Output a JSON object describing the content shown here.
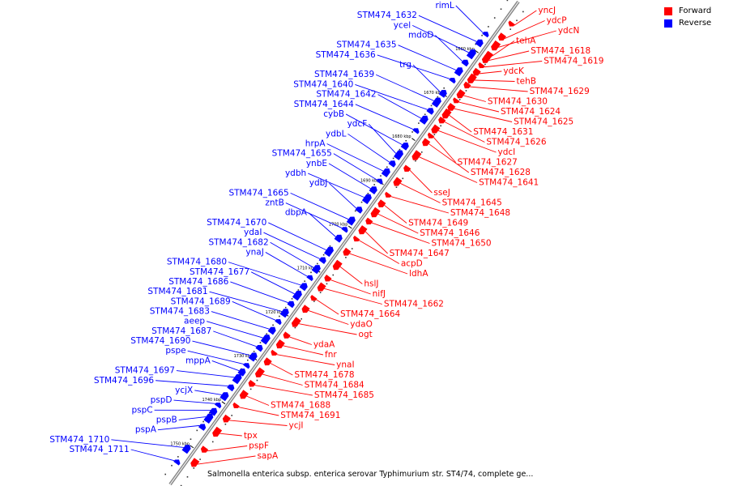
{
  "legend": {
    "forward": {
      "label": "Forward",
      "color": "#ff0000"
    },
    "reverse": {
      "label": "Reverse",
      "color": "#0000ff"
    }
  },
  "caption": "Salmonella enterica subsp. enterica serovar Typhimurium str. ST4/74, complete ge...",
  "ticks": [
    {
      "kbp": 1660,
      "label": "1660 kbp"
    },
    {
      "kbp": 1670,
      "label": "1670 kbp"
    },
    {
      "kbp": 1680,
      "label": "1680 kbp"
    },
    {
      "kbp": 1690,
      "label": "1690 kbp"
    },
    {
      "kbp": 1700,
      "label": "1700 kbp"
    },
    {
      "kbp": 1710,
      "label": "1710 kbp"
    },
    {
      "kbp": 1720,
      "label": "1720 kbp"
    },
    {
      "kbp": 1730,
      "label": "1730 kbp"
    },
    {
      "kbp": 1740,
      "label": "1740 kbp"
    },
    {
      "kbp": 1750,
      "label": "1750 kbp"
    }
  ],
  "reverse_genes": [
    {
      "name": "rimL",
      "kbp": 1656.5
    },
    {
      "name": "STM474_1632",
      "kbp": 1658.5
    },
    {
      "name": "ycel",
      "kbp": 1661
    },
    {
      "name": "mdoD",
      "kbp": 1663
    },
    {
      "name": "STM474_1635",
      "kbp": 1665
    },
    {
      "name": "STM474_1636",
      "kbp": 1667
    },
    {
      "name": "trg",
      "kbp": 1670
    },
    {
      "name": "STM474_1639",
      "kbp": 1672
    },
    {
      "name": "STM474_1640",
      "kbp": 1674
    },
    {
      "name": "STM474_1642",
      "kbp": 1676
    },
    {
      "name": "STM474_1644",
      "kbp": 1678.5
    },
    {
      "name": "cybB",
      "kbp": 1682
    },
    {
      "name": "ydcF",
      "kbp": 1684
    },
    {
      "name": "ydbL",
      "kbp": 1686
    },
    {
      "name": "hrpA",
      "kbp": 1688
    },
    {
      "name": "STM474_1655",
      "kbp": 1690
    },
    {
      "name": "ynbE",
      "kbp": 1692
    },
    {
      "name": "ydbh",
      "kbp": 1694
    },
    {
      "name": "ydbJ",
      "kbp": 1696.5
    },
    {
      "name": "STM474_1665",
      "kbp": 1699
    },
    {
      "name": "zntB",
      "kbp": 1701
    },
    {
      "name": "dbpA",
      "kbp": 1703
    },
    {
      "name": "STM474_1670",
      "kbp": 1706
    },
    {
      "name": "ydaI",
      "kbp": 1708
    },
    {
      "name": "STM474_1682",
      "kbp": 1710
    },
    {
      "name": "ynaJ",
      "kbp": 1712
    },
    {
      "name": "STM474_1680",
      "kbp": 1714
    },
    {
      "name": "STM474_1677",
      "kbp": 1716
    },
    {
      "name": "STM474_1686",
      "kbp": 1718
    },
    {
      "name": "STM474_1681",
      "kbp": 1720
    },
    {
      "name": "STM474_1689",
      "kbp": 1722
    },
    {
      "name": "STM474_1683",
      "kbp": 1724
    },
    {
      "name": "aeep",
      "kbp": 1726
    },
    {
      "name": "STM474_1687",
      "kbp": 1728
    },
    {
      "name": "STM474_1690",
      "kbp": 1730
    },
    {
      "name": "pspe",
      "kbp": 1732
    },
    {
      "name": "mppA",
      "kbp": 1733.5
    },
    {
      "name": "STM474_1697",
      "kbp": 1735
    },
    {
      "name": "STM474_1696",
      "kbp": 1737
    },
    {
      "name": "ycjX",
      "kbp": 1739
    },
    {
      "name": "pspD",
      "kbp": 1741
    },
    {
      "name": "pspC",
      "kbp": 1742.5
    },
    {
      "name": "pspB",
      "kbp": 1744
    },
    {
      "name": "pspA",
      "kbp": 1746
    },
    {
      "name": "STM474_1710",
      "kbp": 1751
    },
    {
      "name": "STM474_1711",
      "kbp": 1754
    }
  ],
  "forward_genes": [
    {
      "name": "yncJ",
      "kbp": 1652
    },
    {
      "name": "ydcP",
      "kbp": 1655
    },
    {
      "name": "ydcN",
      "kbp": 1657
    },
    {
      "name": "tehA",
      "kbp": 1659
    },
    {
      "name": "STM474_1618",
      "kbp": 1660
    },
    {
      "name": "STM474_1619",
      "kbp": 1661.5
    },
    {
      "name": "ydcK",
      "kbp": 1663
    },
    {
      "name": "tehB",
      "kbp": 1664.5
    },
    {
      "name": "STM474_1629",
      "kbp": 1666
    },
    {
      "name": "STM474_1630",
      "kbp": 1668
    },
    {
      "name": "STM474_1624",
      "kbp": 1669.5
    },
    {
      "name": "STM474_1625",
      "kbp": 1671
    },
    {
      "name": "STM474_1631",
      "kbp": 1672.5
    },
    {
      "name": "STM474_1626",
      "kbp": 1674
    },
    {
      "name": "ydcI",
      "kbp": 1676
    },
    {
      "name": "STM474_1627",
      "kbp": 1677.5
    },
    {
      "name": "STM474_1628",
      "kbp": 1679
    },
    {
      "name": "STM474_1641",
      "kbp": 1682
    },
    {
      "name": "sseJ",
      "kbp": 1685
    },
    {
      "name": "STM474_1645",
      "kbp": 1688
    },
    {
      "name": "STM474_1648",
      "kbp": 1691
    },
    {
      "name": "STM474_1649",
      "kbp": 1693
    },
    {
      "name": "STM474_1646",
      "kbp": 1695
    },
    {
      "name": "STM474_1650",
      "kbp": 1697
    },
    {
      "name": "STM474_1647",
      "kbp": 1699
    },
    {
      "name": "acpD",
      "kbp": 1701
    },
    {
      "name": "ldhA",
      "kbp": 1704
    },
    {
      "name": "hslJ",
      "kbp": 1707
    },
    {
      "name": "nifJ",
      "kbp": 1710
    },
    {
      "name": "STM474_1662",
      "kbp": 1712
    },
    {
      "name": "STM474_1664",
      "kbp": 1714.5
    },
    {
      "name": "ydaO",
      "kbp": 1717
    },
    {
      "name": "ogt",
      "kbp": 1720
    },
    {
      "name": "ydaA",
      "kbp": 1723
    },
    {
      "name": "fnr",
      "kbp": 1725
    },
    {
      "name": "ynaI",
      "kbp": 1727
    },
    {
      "name": "STM474_1678",
      "kbp": 1729
    },
    {
      "name": "STM474_1684",
      "kbp": 1731.5
    },
    {
      "name": "STM474_1685",
      "kbp": 1734
    },
    {
      "name": "STM474_1688",
      "kbp": 1736.5
    },
    {
      "name": "STM474_1691",
      "kbp": 1739
    },
    {
      "name": "ycjI",
      "kbp": 1742
    },
    {
      "name": "tpx",
      "kbp": 1745
    },
    {
      "name": "pspF",
      "kbp": 1749
    },
    {
      "name": "sapA",
      "kbp": 1752
    }
  ]
}
